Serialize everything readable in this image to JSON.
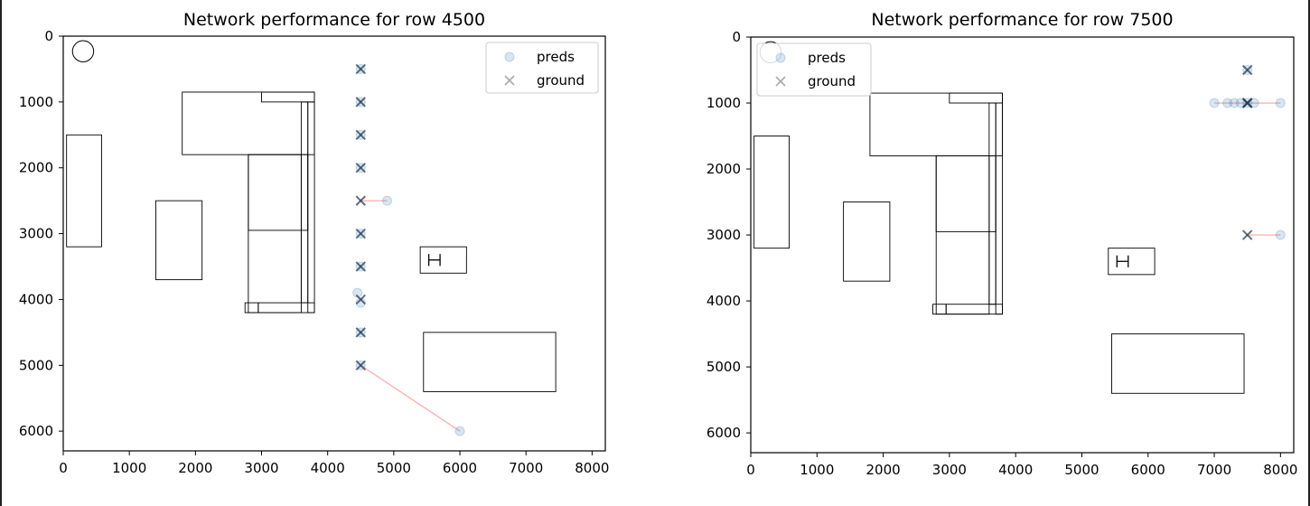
{
  "chart_data": [
    {
      "type": "scatter",
      "title": "Network performance for row 4500",
      "xlabel": "",
      "ylabel": "",
      "xlim": [
        0,
        8200
      ],
      "ylim": [
        6300,
        0
      ],
      "y_inverted": true,
      "grid": false,
      "xticks": [
        0,
        1000,
        2000,
        3000,
        4000,
        5000,
        6000,
        7000,
        8000
      ],
      "yticks": [
        0,
        1000,
        2000,
        3000,
        4000,
        5000,
        6000
      ],
      "legend": {
        "placement": "top-right",
        "entries": [
          "preds",
          "ground"
        ]
      },
      "series": [
        {
          "name": "preds",
          "marker": "circle",
          "points": [
            [
              4500,
              500
            ],
            [
              4500,
              1000
            ],
            [
              4500,
              1500
            ],
            [
              4500,
              2000
            ],
            [
              4900,
              2500
            ],
            [
              4500,
              3000
            ],
            [
              4500,
              3500
            ],
            [
              4450,
              3900
            ],
            [
              4500,
              4500
            ],
            [
              4500,
              5000
            ],
            [
              6000,
              6000
            ],
            [
              4500,
              4050
            ]
          ]
        },
        {
          "name": "ground",
          "marker": "x",
          "points": [
            [
              4500,
              500
            ],
            [
              4500,
              1000
            ],
            [
              4500,
              1500
            ],
            [
              4500,
              2000
            ],
            [
              4500,
              2500
            ],
            [
              4500,
              3000
            ],
            [
              4500,
              3500
            ],
            [
              4500,
              4000
            ],
            [
              4500,
              4500
            ],
            [
              4500,
              5000
            ]
          ]
        }
      ],
      "error_links": [
        {
          "from": [
            4500,
            2500
          ],
          "to": [
            4900,
            2500
          ]
        },
        {
          "from": [
            4500,
            5000
          ],
          "to": [
            6000,
            6000
          ]
        }
      ]
    },
    {
      "type": "scatter",
      "title": "Network performance for row 7500",
      "xlabel": "",
      "ylabel": "",
      "xlim": [
        0,
        8200
      ],
      "ylim": [
        6300,
        0
      ],
      "y_inverted": true,
      "grid": false,
      "xticks": [
        0,
        1000,
        2000,
        3000,
        4000,
        5000,
        6000,
        7000,
        8000
      ],
      "yticks": [
        0,
        1000,
        2000,
        3000,
        4000,
        5000,
        6000
      ],
      "legend": {
        "placement": "top-left",
        "entries": [
          "preds",
          "ground"
        ]
      },
      "series": [
        {
          "name": "preds",
          "marker": "circle",
          "points": [
            [
              7500,
              500
            ],
            [
              7000,
              1000
            ],
            [
              7200,
              1000
            ],
            [
              7300,
              1000
            ],
            [
              7400,
              1000
            ],
            [
              7500,
              1000
            ],
            [
              7600,
              1000
            ],
            [
              8000,
              1000
            ],
            [
              8000,
              3000
            ]
          ]
        },
        {
          "name": "ground",
          "marker": "x",
          "points": [
            [
              7500,
              500
            ],
            [
              7500,
              1000
            ],
            [
              7500,
              1000
            ],
            [
              7500,
              1000
            ],
            [
              7500,
              3000
            ]
          ]
        }
      ],
      "error_links": [
        {
          "from": [
            7000,
            1000
          ],
          "to": [
            8000,
            1000
          ]
        },
        {
          "from": [
            7500,
            3000
          ],
          "to": [
            8000,
            3000
          ]
        }
      ]
    }
  ],
  "floorplan": {
    "rects": [
      [
        50,
        1500,
        580,
        3200
      ],
      [
        1400,
        2500,
        2100,
        3700
      ],
      [
        1800,
        850,
        3800,
        1800
      ],
      [
        3000,
        850,
        3800,
        1000
      ],
      [
        2800,
        1800,
        3600,
        4200
      ],
      [
        2800,
        1800,
        3700,
        2950
      ],
      [
        3600,
        1000,
        3700,
        4050
      ],
      [
        3700,
        1000,
        3800,
        4200
      ],
      [
        2750,
        4050,
        2950,
        4200
      ],
      [
        2950,
        4050,
        3800,
        4200
      ],
      [
        5400,
        3200,
        6100,
        3600
      ],
      [
        5450,
        4500,
        7450,
        5400
      ]
    ],
    "circle": {
      "cx": 300,
      "cy": 230,
      "r": 160
    },
    "h_glyph": {
      "x1": 5530,
      "x2": 5700,
      "y": 3400,
      "half": 90
    }
  },
  "colors": {
    "pred_fill": "#1f77b4",
    "ground_x": "#2b3f55",
    "link": "#ff9f9f",
    "outline": "#000000"
  }
}
